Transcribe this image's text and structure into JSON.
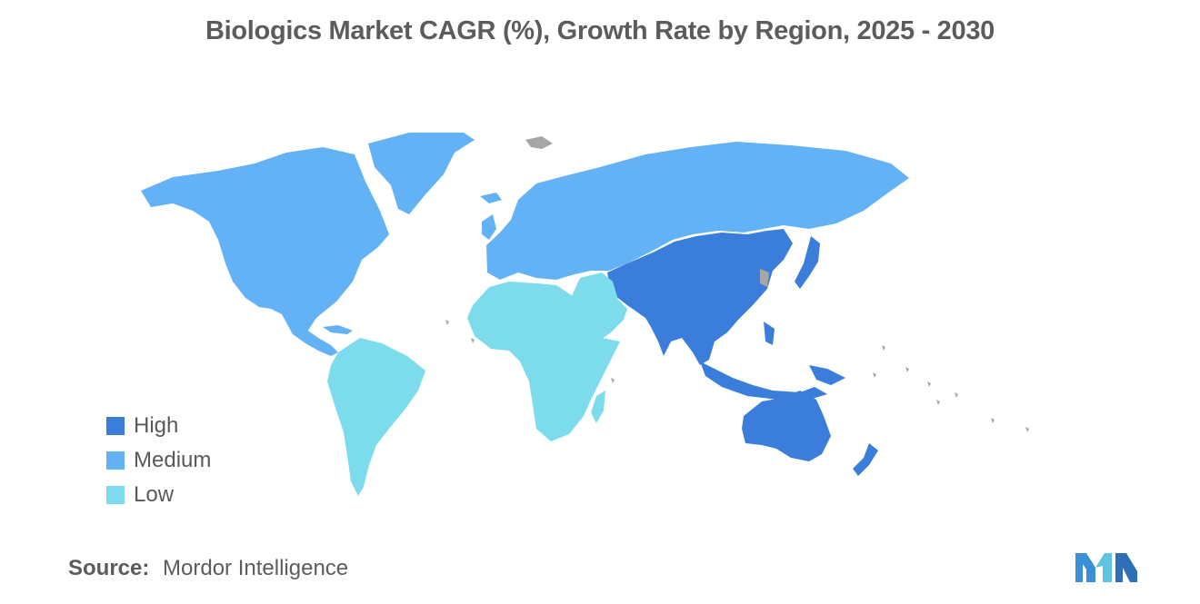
{
  "title": "Biologics Market CAGR (%), Growth Rate by Region, 2025 - 2030",
  "legend": [
    {
      "label": "High",
      "color": "#3a7ddb"
    },
    {
      "label": "Medium",
      "color": "#63b2f6"
    },
    {
      "label": "Low",
      "color": "#7ddcec"
    }
  ],
  "regions": {
    "north_america": "Medium",
    "europe_russia": "Medium",
    "asia_pacific": "High",
    "middle_east_africa": "Low",
    "south_america": "Low"
  },
  "no_data_color": "#a6a6a6",
  "source": {
    "label": "Source:",
    "text": "Mordor Intelligence"
  },
  "logo": "mordor-intelligence-logo"
}
